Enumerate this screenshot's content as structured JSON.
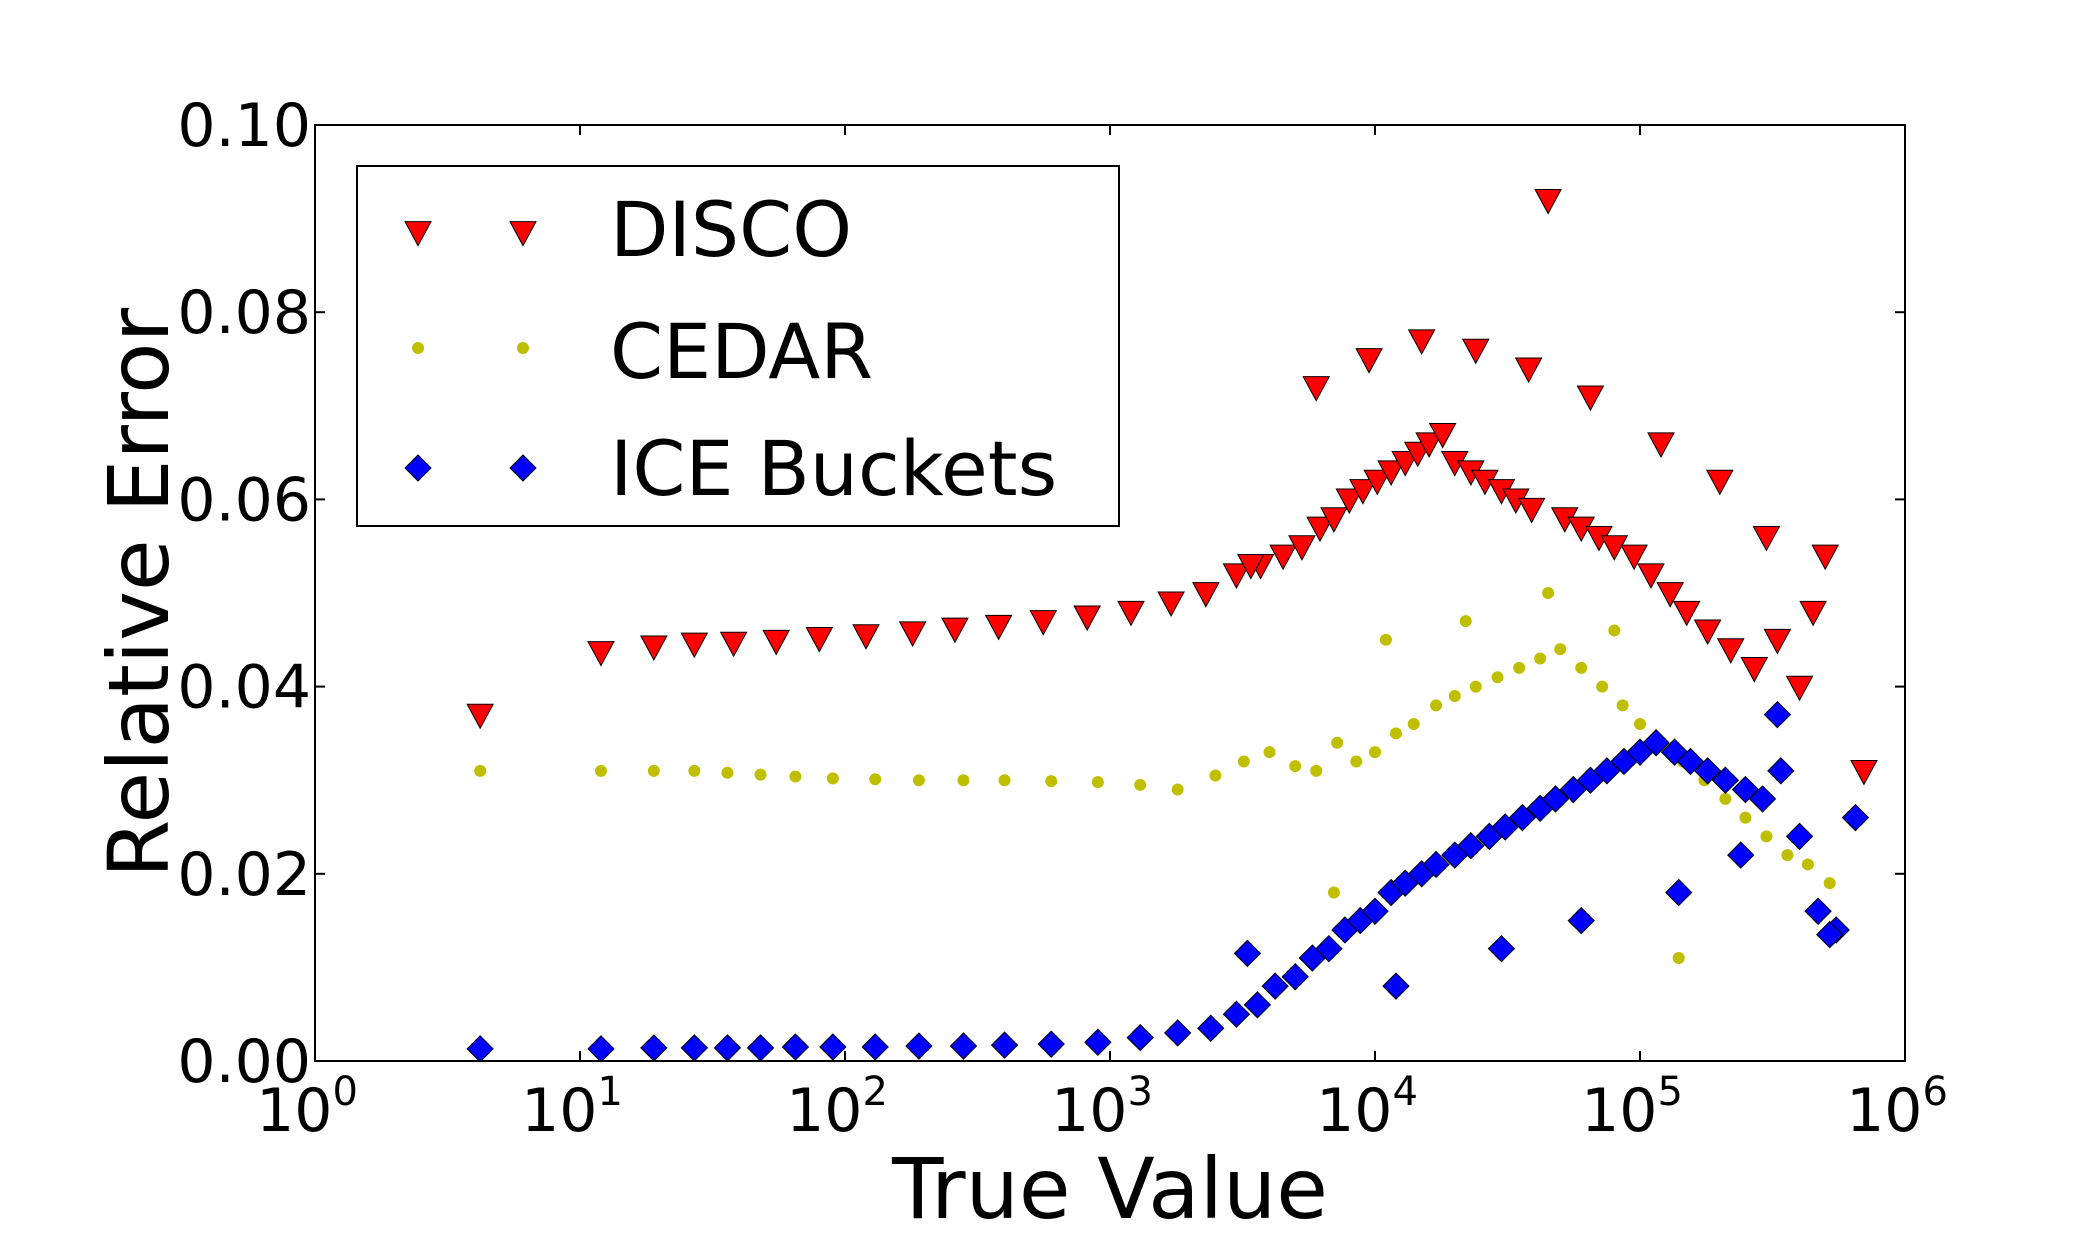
{
  "chart_data": {
    "type": "scatter",
    "title": "",
    "xlabel": "True Value",
    "ylabel": "Relative Error",
    "xscale": "log",
    "xlim": [
      1,
      1000000
    ],
    "ylim": [
      0.0,
      0.1
    ],
    "x_ticks": [
      {
        "base": "10",
        "exp": "0",
        "value": 1
      },
      {
        "base": "10",
        "exp": "1",
        "value": 10
      },
      {
        "base": "10",
        "exp": "2",
        "value": 100
      },
      {
        "base": "10",
        "exp": "3",
        "value": 1000
      },
      {
        "base": "10",
        "exp": "4",
        "value": 10000
      },
      {
        "base": "10",
        "exp": "5",
        "value": 100000
      },
      {
        "base": "10",
        "exp": "6",
        "value": 1000000
      }
    ],
    "y_ticks": [
      {
        "label": "0.00",
        "value": 0.0
      },
      {
        "label": "0.02",
        "value": 0.02
      },
      {
        "label": "0.04",
        "value": 0.04
      },
      {
        "label": "0.06",
        "value": 0.06
      },
      {
        "label": "0.08",
        "value": 0.08
      },
      {
        "label": "0.10",
        "value": 0.1
      }
    ],
    "legend_position": "top-left",
    "series": [
      {
        "name": "DISCO",
        "marker": "triangle-down",
        "color": "#ff0000",
        "x": [
          4.2,
          12,
          19,
          27,
          38,
          55,
          80,
          120,
          180,
          260,
          380,
          560,
          820,
          1200,
          1700,
          2300,
          3000,
          3700,
          4500,
          5300,
          6200,
          7000,
          8000,
          9000,
          10200,
          11500,
          13000,
          14500,
          16000,
          18000,
          20000,
          23000,
          26000,
          30000,
          34000,
          39000,
          45000,
          52000,
          60000,
          70000,
          80000,
          95000,
          110000,
          130000,
          150000,
          180000,
          220000,
          270000,
          330000,
          400000,
          500000,
          700000,
          3400,
          6000,
          9500,
          15000,
          24000,
          38000,
          65000,
          120000,
          200000,
          300000,
          450000
        ],
        "y": [
          0.037,
          0.0437,
          0.0443,
          0.0446,
          0.0447,
          0.0449,
          0.0452,
          0.0455,
          0.0458,
          0.0462,
          0.0465,
          0.047,
          0.0475,
          0.048,
          0.049,
          0.05,
          0.052,
          0.053,
          0.054,
          0.055,
          0.057,
          0.058,
          0.06,
          0.061,
          0.062,
          0.063,
          0.064,
          0.065,
          0.066,
          0.067,
          0.064,
          0.063,
          0.062,
          0.061,
          0.06,
          0.059,
          0.092,
          0.058,
          0.057,
          0.056,
          0.055,
          0.054,
          0.052,
          0.05,
          0.048,
          0.046,
          0.044,
          0.042,
          0.045,
          0.04,
          0.054,
          0.031,
          0.053,
          0.072,
          0.075,
          0.077,
          0.076,
          0.074,
          0.071,
          0.066,
          0.062,
          0.056,
          0.048
        ]
      },
      {
        "name": "CEDAR",
        "marker": "circle",
        "color": "#bfbf00",
        "x": [
          4.2,
          12,
          19,
          27,
          36,
          48,
          65,
          90,
          130,
          190,
          280,
          400,
          600,
          900,
          1300,
          1800,
          2500,
          3200,
          4000,
          5000,
          6000,
          7200,
          8500,
          10000,
          12000,
          14000,
          17000,
          20000,
          24000,
          29000,
          35000,
          42000,
          50000,
          60000,
          72000,
          86000,
          100000,
          120000,
          145000,
          175000,
          210000,
          250000,
          300000,
          360000,
          430000,
          520000,
          620000,
          7000,
          11000,
          22000,
          45000,
          80000,
          140000
        ],
        "y": [
          0.031,
          0.031,
          0.031,
          0.031,
          0.0308,
          0.0306,
          0.0304,
          0.0302,
          0.0301,
          0.03,
          0.03,
          0.03,
          0.0299,
          0.0298,
          0.0295,
          0.029,
          0.0305,
          0.032,
          0.033,
          0.0315,
          0.031,
          0.034,
          0.032,
          0.033,
          0.035,
          0.036,
          0.038,
          0.039,
          0.04,
          0.041,
          0.042,
          0.043,
          0.044,
          0.042,
          0.04,
          0.038,
          0.036,
          0.034,
          0.032,
          0.03,
          0.028,
          0.026,
          0.024,
          0.022,
          0.021,
          0.019,
          0.026,
          0.018,
          0.045,
          0.047,
          0.05,
          0.046,
          0.011
        ]
      },
      {
        "name": "ICE Buckets",
        "marker": "diamond",
        "color": "#0000ff",
        "x": [
          4.2,
          12,
          19,
          27,
          36,
          48,
          65,
          90,
          130,
          190,
          280,
          400,
          600,
          900,
          1300,
          1800,
          2400,
          3000,
          3600,
          4200,
          5000,
          5800,
          6700,
          7700,
          8800,
          10000,
          11500,
          13000,
          15000,
          17000,
          20000,
          23000,
          27000,
          31000,
          36000,
          42000,
          48000,
          56000,
          65000,
          75000,
          87000,
          100000,
          115000,
          135000,
          155000,
          180000,
          210000,
          250000,
          290000,
          340000,
          400000,
          470000,
          550000,
          650000,
          3300,
          12000,
          30000,
          60000,
          140000,
          240000,
          330000,
          520000
        ],
        "y": [
          0.0013,
          0.0013,
          0.0014,
          0.0014,
          0.0014,
          0.0014,
          0.0015,
          0.0015,
          0.0015,
          0.0016,
          0.0016,
          0.0017,
          0.0018,
          0.002,
          0.0025,
          0.003,
          0.0035,
          0.005,
          0.006,
          0.008,
          0.009,
          0.011,
          0.012,
          0.014,
          0.015,
          0.016,
          0.018,
          0.019,
          0.02,
          0.021,
          0.022,
          0.023,
          0.024,
          0.025,
          0.026,
          0.027,
          0.028,
          0.029,
          0.03,
          0.031,
          0.032,
          0.033,
          0.034,
          0.033,
          0.032,
          0.031,
          0.03,
          0.029,
          0.028,
          0.031,
          0.024,
          0.016,
          0.014,
          0.026,
          0.0115,
          0.008,
          0.012,
          0.015,
          0.018,
          0.022,
          0.037,
          0.0135
        ]
      }
    ]
  }
}
